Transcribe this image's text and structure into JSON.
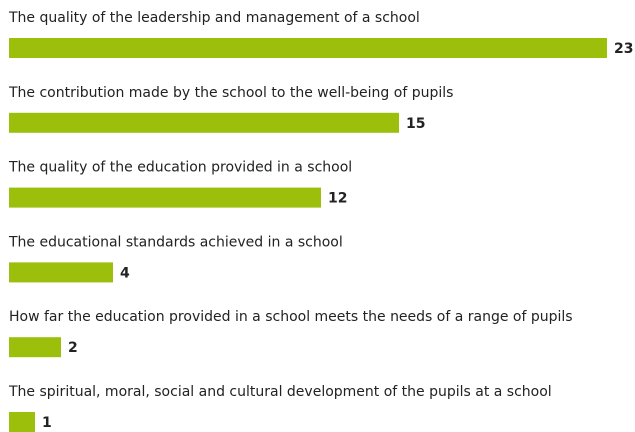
{
  "chart_data": {
    "type": "bar",
    "orientation": "horizontal",
    "color": "#9bbf0b",
    "categories": [
      "The quality of the leadership and management of a school",
      "The contribution made by the school to the well-being of pupils",
      "The quality of the education provided in a school",
      "The educational standards achieved in a school",
      "How far the education provided in a school meets the needs of a range of pupils",
      "The spiritual, moral, social and cultural development of the pupils at a school"
    ],
    "values": [
      23,
      15,
      12,
      4,
      2,
      1
    ]
  }
}
